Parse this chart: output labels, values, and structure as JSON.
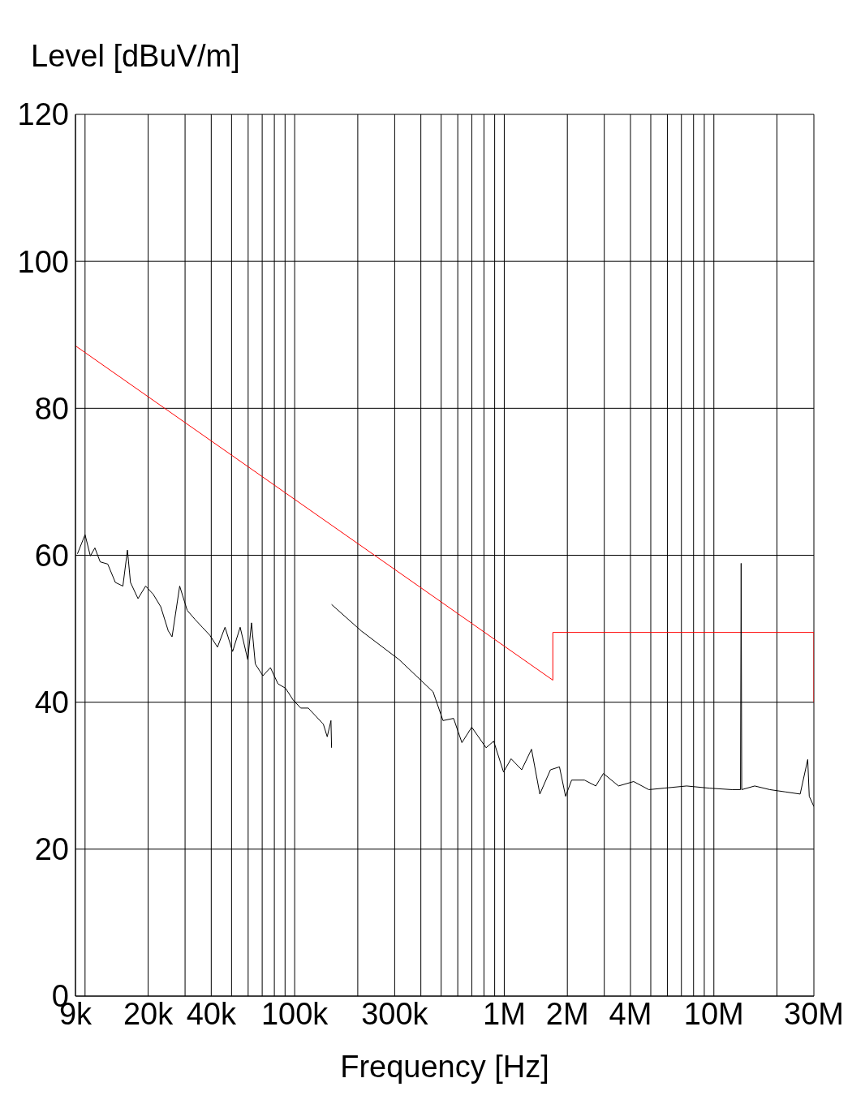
{
  "chart_data": {
    "type": "line",
    "xlabel": "Frequency [Hz]",
    "ylabel": "Level [dBuV/m]",
    "log": "x",
    "grid": true,
    "marker": "none",
    "line_style": "solid",
    "xlim": [
      9000,
      30000000
    ],
    "ylim": [
      0,
      120
    ],
    "yticks": [
      0,
      20,
      40,
      60,
      80,
      100,
      120
    ],
    "xticks": [
      {
        "value": 9000,
        "label": "9k"
      },
      {
        "value": 10000,
        "label": null
      },
      {
        "value": 20000,
        "label": "20k"
      },
      {
        "value": 30000,
        "label": null
      },
      {
        "value": 40000,
        "label": "40k"
      },
      {
        "value": 50000,
        "label": null
      },
      {
        "value": 60000,
        "label": null
      },
      {
        "value": 70000,
        "label": null
      },
      {
        "value": 80000,
        "label": null
      },
      {
        "value": 90000,
        "label": null
      },
      {
        "value": 100000,
        "label": "100k"
      },
      {
        "value": 200000,
        "label": null
      },
      {
        "value": 300000,
        "label": "300k"
      },
      {
        "value": 400000,
        "label": null
      },
      {
        "value": 500000,
        "label": null
      },
      {
        "value": 600000,
        "label": null
      },
      {
        "value": 700000,
        "label": null
      },
      {
        "value": 800000,
        "label": null
      },
      {
        "value": 900000,
        "label": null
      },
      {
        "value": 1000000,
        "label": "1M"
      },
      {
        "value": 2000000,
        "label": "2M"
      },
      {
        "value": 3000000,
        "label": null
      },
      {
        "value": 4000000,
        "label": "4M"
      },
      {
        "value": 5000000,
        "label": null
      },
      {
        "value": 6000000,
        "label": null
      },
      {
        "value": 7000000,
        "label": null
      },
      {
        "value": 8000000,
        "label": null
      },
      {
        "value": 9000000,
        "label": null
      },
      {
        "value": 10000000,
        "label": "10M"
      },
      {
        "value": 20000000,
        "label": null
      },
      {
        "value": 30000000,
        "label": "30M"
      }
    ],
    "series": [
      {
        "color": "#ff0000",
        "x": [
          9000,
          1705000,
          1705000,
          30000000,
          30000000
        ],
        "values": [
          88.5,
          43,
          49.5,
          49.5,
          40
        ]
      },
      {
        "color": "#000000",
        "x": [
          9200,
          10000,
          10600,
          11140,
          11810,
          12830,
          13950,
          15150,
          15930,
          16470,
          17890,
          19450,
          21130,
          22960,
          24950,
          26010,
          28280,
          30720,
          33380,
          36270,
          39420,
          42830,
          46540,
          50580,
          54960,
          59720,
          62260,
          64900,
          70520,
          76630,
          83270,
          90490,
          98350,
          106900,
          116100,
          126200,
          137100,
          143000,
          149000,
          150000
        ],
        "values": [
          60.2,
          62.8,
          59.9,
          61.0,
          59.1,
          58.8,
          56.3,
          55.8,
          60.7,
          56.3,
          54.1,
          55.8,
          54.7,
          53.0,
          49.7,
          48.9,
          55.8,
          52.5,
          51.3,
          50.2,
          49.1,
          47.5,
          50.2,
          46.9,
          50.2,
          45.8,
          50.8,
          45.2,
          43.6,
          44.7,
          42.5,
          41.9,
          40.3,
          39.2,
          39.2,
          38.1,
          37.0,
          35.3,
          37.5,
          33.8
        ]
      },
      {
        "color": "#000000",
        "x": [
          150000,
          207900,
          314900,
          457700,
          510100,
          573000,
          627900,
          699500,
          819000,
          890000,
          992000,
          1078000,
          1211000,
          1349000,
          1478000,
          1661000,
          1834000,
          1961000,
          2096000,
          2413000,
          2734000,
          2971000,
          3509000,
          4143000,
          4892000,
          5776000,
          7413000,
          9513000,
          12210000,
          13400000,
          13490000,
          13580000,
          15660000,
          18500000,
          21850000,
          25800000,
          28040000,
          28510000,
          30000000
        ],
        "values": [
          53.3,
          49.7,
          45.8,
          41.4,
          37.5,
          37.8,
          34.5,
          36.6,
          33.8,
          34.7,
          30.5,
          32.3,
          30.8,
          33.6,
          27.5,
          30.8,
          31.2,
          27.2,
          29.4,
          29.4,
          28.6,
          30.3,
          28.6,
          29.2,
          28.1,
          28.3,
          28.6,
          28.3,
          28.1,
          28.1,
          58.9,
          28.1,
          28.6,
          28.1,
          27.8,
          27.5,
          32.2,
          27.2,
          25.8
        ]
      }
    ]
  }
}
